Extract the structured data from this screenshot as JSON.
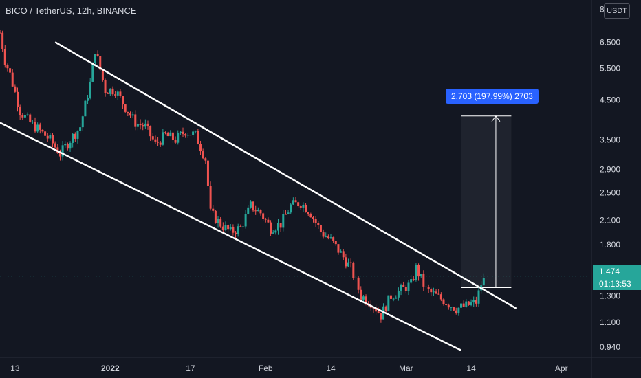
{
  "header": {
    "symbol_title": "BICO / TetherUS, 12h, BINANCE",
    "currency_button": "USDT"
  },
  "price_label": {
    "last": "1.474",
    "countdown": "01:13:53"
  },
  "measure_label": "2.703 (197.99%) 2703",
  "colors": {
    "background": "#131722",
    "up": "#26a69a",
    "down": "#ef5350",
    "trendline": "#ffffff",
    "measure_box": "#2962ff",
    "last_price_line": "#26a69a"
  },
  "chart_data": {
    "type": "candlestick",
    "title": "BICO / TetherUS, 12h, BINANCE",
    "yscale": "log",
    "ylim": [
      0.88,
      8.2
    ],
    "xlim": [
      "2021-12-10",
      "2022-04-07"
    ],
    "y_ticks": [
      "8.000",
      "6.500",
      "5.500",
      "4.500",
      "3.500",
      "2.900",
      "2.500",
      "2.100",
      "1.800",
      "1.300",
      "1.100",
      "0.940"
    ],
    "x_ticks": [
      "13",
      "2022",
      "17",
      "Feb",
      "14",
      "Mar",
      "14",
      "Apr"
    ],
    "series_close_path": [
      [
        "2021-12-10",
        6.9
      ],
      [
        "2021-12-11",
        5.8
      ],
      [
        "2021-12-12",
        5.3
      ],
      [
        "2021-12-14",
        4.2
      ],
      [
        "2021-12-16",
        3.9
      ],
      [
        "2021-12-18",
        3.7
      ],
      [
        "2021-12-20",
        3.5
      ],
      [
        "2021-12-22",
        3.2
      ],
      [
        "2021-12-24",
        3.5
      ],
      [
        "2021-12-26",
        3.8
      ],
      [
        "2021-12-28",
        5.0
      ],
      [
        "2021-12-29",
        6.2
      ],
      [
        "2021-12-31",
        4.8
      ],
      [
        "2022-01-02",
        4.8
      ],
      [
        "2022-01-04",
        4.3
      ],
      [
        "2022-01-06",
        3.9
      ],
      [
        "2022-01-08",
        3.8
      ],
      [
        "2022-01-10",
        3.4
      ],
      [
        "2022-01-12",
        3.6
      ],
      [
        "2022-01-14",
        3.5
      ],
      [
        "2022-01-16",
        3.7
      ],
      [
        "2022-01-18",
        3.6
      ],
      [
        "2022-01-20",
        3.1
      ],
      [
        "2022-01-21",
        2.2
      ],
      [
        "2022-01-23",
        2.05
      ],
      [
        "2022-01-25",
        1.95
      ],
      [
        "2022-01-27",
        2.0
      ],
      [
        "2022-01-29",
        2.3
      ],
      [
        "2022-01-31",
        2.2
      ],
      [
        "2022-02-02",
        2.0
      ],
      [
        "2022-02-04",
        2.05
      ],
      [
        "2022-02-06",
        2.3
      ],
      [
        "2022-02-08",
        2.35
      ],
      [
        "2022-02-10",
        2.2
      ],
      [
        "2022-02-12",
        1.95
      ],
      [
        "2022-02-14",
        1.85
      ],
      [
        "2022-02-16",
        1.7
      ],
      [
        "2022-02-18",
        1.55
      ],
      [
        "2022-02-20",
        1.3
      ],
      [
        "2022-02-22",
        1.25
      ],
      [
        "2022-02-24",
        1.15
      ],
      [
        "2022-02-26",
        1.3
      ],
      [
        "2022-02-28",
        1.35
      ],
      [
        "2022-03-02",
        1.4
      ],
      [
        "2022-03-03",
        1.55
      ],
      [
        "2022-03-05",
        1.35
      ],
      [
        "2022-03-07",
        1.3
      ],
      [
        "2022-03-09",
        1.25
      ],
      [
        "2022-03-11",
        1.2
      ],
      [
        "2022-03-13",
        1.22
      ],
      [
        "2022-03-15",
        1.25
      ],
      [
        "2022-03-16",
        1.4
      ],
      [
        "2022-03-17",
        1.474
      ]
    ],
    "trendlines": [
      {
        "points": [
          [
            "2021-12-21",
            6.5
          ],
          [
            "2022-03-23",
            1.2
          ]
        ]
      },
      {
        "points": [
          [
            "2021-12-10",
            3.9
          ],
          [
            "2022-03-12",
            0.92
          ]
        ]
      }
    ],
    "measurement": {
      "from_price": 1.37,
      "to_price": 4.07,
      "x_range": [
        "2022-03-12",
        "2022-03-22"
      ],
      "label": "2.703 (197.99%) 2703"
    },
    "last_price": 1.474
  }
}
